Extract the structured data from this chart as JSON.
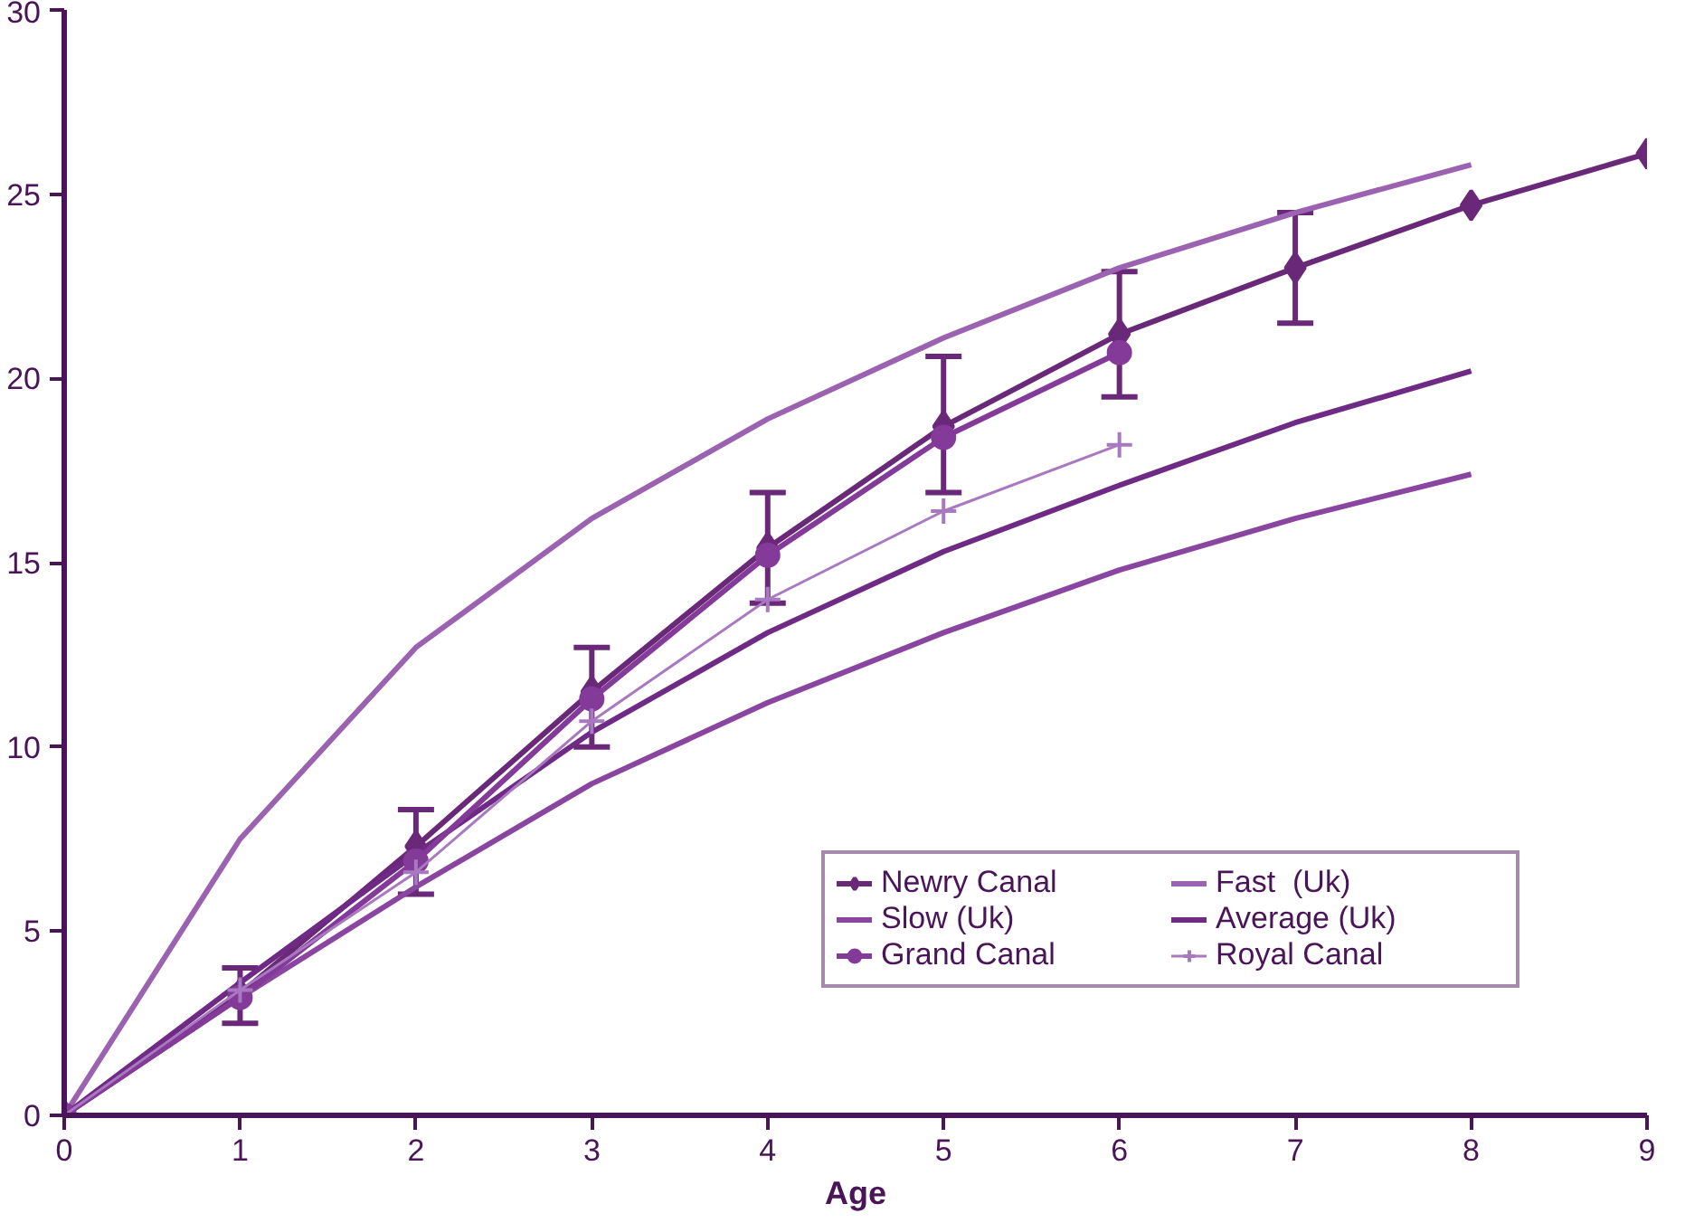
{
  "chart_data": {
    "type": "line",
    "xlabel": "Age",
    "xlim": [
      0,
      9
    ],
    "xticks": [
      0,
      1,
      2,
      3,
      4,
      5,
      6,
      7,
      8,
      9
    ],
    "ylim": [
      0,
      30
    ],
    "yticks": [
      0,
      5,
      10,
      15,
      20,
      25,
      30
    ],
    "grid": false,
    "legend": "bottom right",
    "series": [
      {
        "name": "Newry Canal",
        "color": "#6a2878",
        "marker": "diamond",
        "x": [
          0,
          1,
          2,
          3,
          4,
          5,
          6,
          7,
          8,
          9
        ],
        "values": [
          0,
          3.3,
          7.3,
          11.5,
          15.4,
          18.7,
          21.2,
          23.0,
          24.7,
          26.1
        ],
        "errors": [
          null,
          [
            2.5,
            4.0
          ],
          [
            6.0,
            8.3
          ],
          [
            10.0,
            12.7
          ],
          [
            13.9,
            16.9
          ],
          [
            16.9,
            20.6
          ],
          [
            19.5,
            22.9
          ],
          [
            21.5,
            24.5
          ],
          null,
          null
        ]
      },
      {
        "name": "Fast  (Uk)",
        "color": "#9a62b0",
        "marker": "none",
        "x": [
          0,
          1,
          2,
          3,
          4,
          5,
          6,
          7,
          8
        ],
        "values": [
          0,
          7.5,
          12.7,
          16.2,
          18.9,
          21.1,
          23.0,
          24.5,
          25.8
        ]
      },
      {
        "name": "Slow (Uk)",
        "color": "#8a45a0",
        "marker": "none",
        "x": [
          0,
          1,
          2,
          3,
          4,
          5,
          6,
          7,
          8
        ],
        "values": [
          0,
          3.2,
          6.2,
          9.0,
          11.2,
          13.1,
          14.8,
          16.2,
          17.4
        ]
      },
      {
        "name": "Average (Uk)",
        "color": "#6e2a84",
        "marker": "none",
        "x": [
          0,
          1,
          2,
          3,
          4,
          5,
          6,
          7,
          8
        ],
        "values": [
          0,
          3.6,
          7.1,
          10.4,
          13.1,
          15.3,
          17.1,
          18.8,
          20.2
        ]
      },
      {
        "name": "Grand Canal",
        "color": "#843a98",
        "marker": "circle",
        "x": [
          0,
          1,
          2,
          3,
          4,
          5,
          6
        ],
        "values": [
          0,
          3.2,
          6.9,
          11.3,
          15.2,
          18.4,
          20.7
        ]
      },
      {
        "name": "Royal Canal",
        "color": "#a878c0",
        "marker": "cross",
        "x": [
          0,
          1,
          2,
          3,
          4,
          5,
          6
        ],
        "values": [
          0,
          3.4,
          6.6,
          10.7,
          14.0,
          16.4,
          18.2
        ]
      }
    ]
  }
}
